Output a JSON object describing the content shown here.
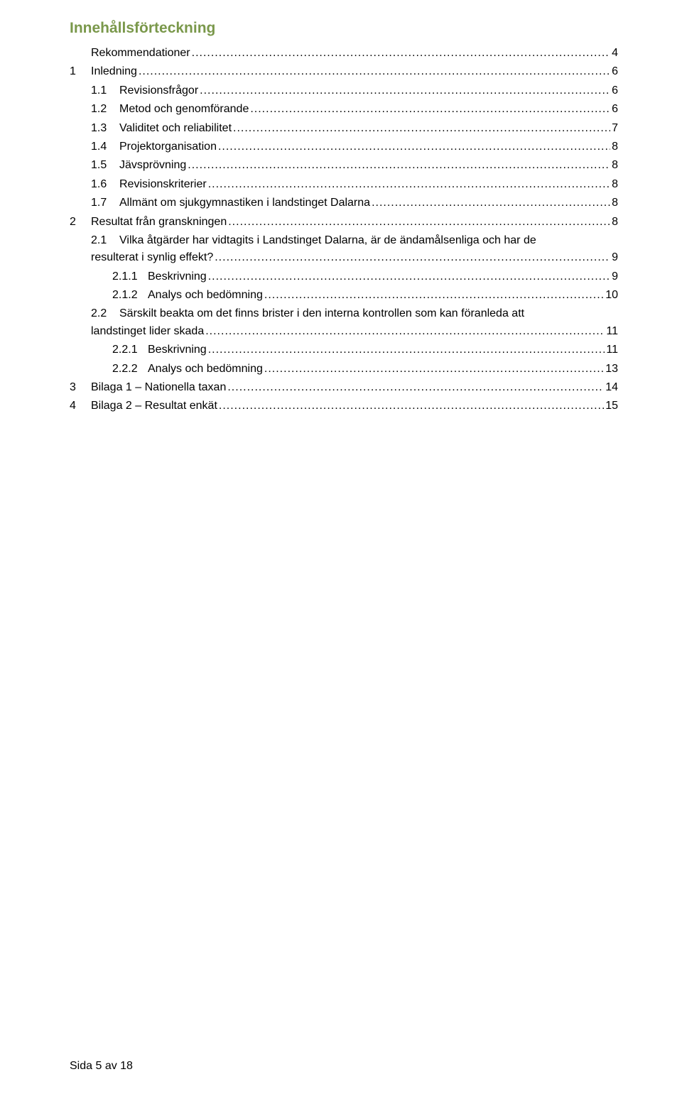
{
  "title": {
    "text": "Innehållsförteckning",
    "color": "#7a984b",
    "fontsize": 21
  },
  "toc": {
    "fontsize": 16,
    "text_color": "#000000",
    "entries": [
      {
        "indent": "indent-0",
        "num": "",
        "nw": "",
        "label": "Rekommendationer",
        "page": "4"
      },
      {
        "indent": "indent-1",
        "num": "1",
        "nw": "w1",
        "label": "Inledning",
        "page": "6"
      },
      {
        "indent": "indent-1-sub",
        "num": "1.1",
        "nw": "w2",
        "label": "Revisionsfrågor",
        "page": "6"
      },
      {
        "indent": "indent-1-sub",
        "num": "1.2",
        "nw": "w2",
        "label": "Metod och genomförande",
        "page": "6"
      },
      {
        "indent": "indent-1-sub",
        "num": "1.3",
        "nw": "w2",
        "label": "Validitet och reliabilitet",
        "page": "7"
      },
      {
        "indent": "indent-1-sub",
        "num": "1.4",
        "nw": "w2",
        "label": "Projektorganisation",
        "page": "8"
      },
      {
        "indent": "indent-1-sub",
        "num": "1.5",
        "nw": "w2",
        "label": "Jävsprövning",
        "page": "8"
      },
      {
        "indent": "indent-1-sub",
        "num": "1.6",
        "nw": "w2",
        "label": "Revisionskriterier",
        "page": "8"
      },
      {
        "indent": "indent-1-sub",
        "num": "1.7",
        "nw": "w2",
        "label": "Allmänt om sjukgymnastiken i landstinget Dalarna",
        "page": "8"
      },
      {
        "indent": "indent-1",
        "num": "2",
        "nw": "w1",
        "label": "Resultat från granskningen",
        "page": "8"
      },
      {
        "indent": "indent-1-sub",
        "num": "2.1",
        "nw": "w2",
        "label": "Vilka åtgärder har vidtagits i Landstinget Dalarna, är de ändamålsenliga och har de",
        "page": "",
        "wrap": true
      },
      {
        "indent": "indent-1-sub",
        "num": "",
        "nw": "",
        "label": "resulterat i synlig effekt?",
        "page": "9",
        "cont": true
      },
      {
        "indent": "indent-2",
        "num": "2.1.1",
        "nw": "w3",
        "label": "Beskrivning",
        "page": "9"
      },
      {
        "indent": "indent-2",
        "num": "2.1.2",
        "nw": "w3",
        "label": "Analys och bedömning",
        "page": "10"
      },
      {
        "indent": "indent-1-sub",
        "num": "2.2",
        "nw": "w2",
        "label": "Särskilt beakta om det finns brister i den interna kontrollen som kan föranleda att",
        "page": "",
        "wrap": true
      },
      {
        "indent": "indent-1-sub",
        "num": "",
        "nw": "",
        "label": "landstinget lider skada",
        "page": "11",
        "cont": true
      },
      {
        "indent": "indent-2",
        "num": "2.2.1",
        "nw": "w3",
        "label": "Beskrivning",
        "page": "11"
      },
      {
        "indent": "indent-2",
        "num": "2.2.2",
        "nw": "w3",
        "label": "Analys och bedömning",
        "page": "13"
      },
      {
        "indent": "indent-1",
        "num": "3",
        "nw": "w1",
        "label": "Bilaga 1 – Nationella taxan",
        "page": "14"
      },
      {
        "indent": "indent-1",
        "num": "4",
        "nw": "w1",
        "label": "Bilaga 2 – Resultat enkät",
        "page": "15"
      }
    ]
  },
  "footer": "Sida 5 av 18"
}
